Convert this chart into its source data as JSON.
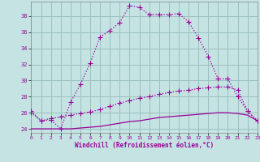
{
  "bg_color": "#c5e3e3",
  "line_color": "#990099",
  "grid_color": "#9bbfbf",
  "ylim": [
    23.5,
    39.8
  ],
  "xlim": [
    0,
    23
  ],
  "yticks": [
    24,
    26,
    28,
    30,
    32,
    34,
    36,
    38
  ],
  "xticks": [
    0,
    1,
    2,
    3,
    4,
    5,
    6,
    7,
    8,
    9,
    10,
    11,
    12,
    13,
    14,
    15,
    16,
    17,
    18,
    19,
    20,
    21,
    22,
    23
  ],
  "xlabel": "Windchill (Refroidissement éolien,°C)",
  "x": [
    0,
    1,
    2,
    3,
    4,
    5,
    6,
    7,
    8,
    9,
    10,
    11,
    12,
    13,
    14,
    15,
    16,
    17,
    18,
    19,
    20,
    21,
    22,
    23
  ],
  "line1": [
    26.2,
    25.0,
    25.1,
    24.0,
    27.3,
    29.5,
    32.2,
    35.4,
    36.2,
    37.2,
    39.3,
    39.1,
    38.2,
    38.2,
    38.2,
    38.3,
    37.3,
    35.3,
    33.0,
    30.2,
    30.2,
    28.0,
    26.2,
    25.0
  ],
  "line2": [
    26.0,
    25.0,
    25.3,
    25.5,
    25.7,
    25.9,
    26.1,
    26.4,
    26.8,
    27.2,
    27.5,
    27.8,
    28.0,
    28.3,
    28.5,
    28.7,
    28.8,
    29.0,
    29.1,
    29.2,
    29.2,
    28.8,
    26.2,
    25.0
  ],
  "line3": [
    24.0,
    24.0,
    24.0,
    24.0,
    24.0,
    24.1,
    24.2,
    24.3,
    24.5,
    24.7,
    24.9,
    25.0,
    25.2,
    25.4,
    25.5,
    25.6,
    25.7,
    25.8,
    25.9,
    26.0,
    26.0,
    25.9,
    25.7,
    25.0
  ]
}
